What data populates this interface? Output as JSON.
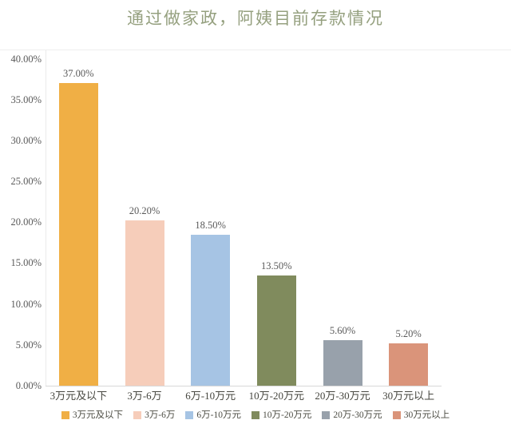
{
  "page": {
    "background_color": "#ffffff"
  },
  "chart_data": {
    "type": "bar",
    "title": "通过做家政，阿姨目前存款情况",
    "title_color": "#95a07f",
    "categories": [
      "3万元及以下",
      "3万-6万",
      "6万-10万元",
      "10万-20万元",
      "20万-30万元",
      "30万元以上"
    ],
    "values": [
      37.0,
      20.2,
      18.5,
      13.5,
      5.6,
      5.2
    ],
    "value_labels": [
      "37.00%",
      "20.20%",
      "18.50%",
      "13.50%",
      "5.60%",
      "5.20%"
    ],
    "bar_colors": [
      "#f0af45",
      "#f6cdba",
      "#a6c4e4",
      "#808b5d",
      "#98a1ab",
      "#da947a"
    ],
    "xlabel": "",
    "ylabel": "",
    "ylim": [
      0,
      40
    ],
    "grid": false,
    "y_axis": {
      "ticks": [
        {
          "label": "0.00%",
          "value": 0
        },
        {
          "label": "5.00%",
          "value": 5
        },
        {
          "label": "10.00%",
          "value": 10
        },
        {
          "label": "15.00%",
          "value": 15
        },
        {
          "label": "20.00%",
          "value": 20
        },
        {
          "label": "25.00%",
          "value": 25
        },
        {
          "label": "30.00%",
          "value": 30
        },
        {
          "label": "35.00%",
          "value": 35
        },
        {
          "label": "40.00%",
          "value": 40
        }
      ]
    },
    "legend": {
      "position": "bottom",
      "items": [
        "3万元及以下",
        "3万-6万",
        "6万-10万元",
        "10万-20万元",
        "20万-30万元",
        "30万元以上"
      ]
    }
  }
}
